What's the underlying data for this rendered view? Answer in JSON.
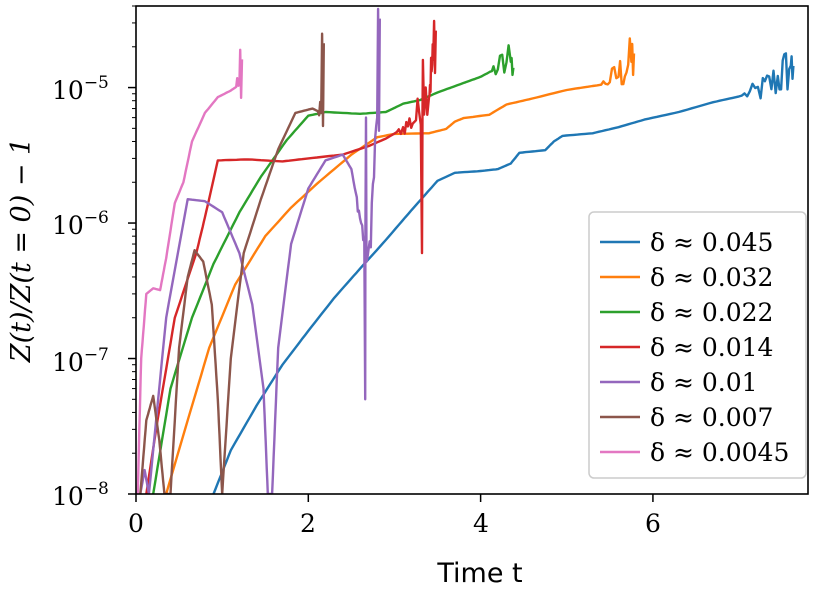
{
  "chart_data": {
    "type": "line",
    "xlabel": "Time t",
    "ylabel": "Z(t)/Z(t = 0) − 1",
    "yscale": "log",
    "xlim": [
      0,
      7.8
    ],
    "ylim": [
      1e-08,
      4e-05
    ],
    "x_ticks": [
      0,
      2,
      4,
      6
    ],
    "x_tick_labels": [
      "0",
      "2",
      "4",
      "6"
    ],
    "y_ticks": [
      1e-08,
      1e-07,
      1e-06,
      1e-05
    ],
    "y_tick_labels": [
      {
        "base": "10",
        "exp": "−8"
      },
      {
        "base": "10",
        "exp": "−7"
      },
      {
        "base": "10",
        "exp": "−6"
      },
      {
        "base": "10",
        "exp": "−5"
      }
    ],
    "legend_position": "lower-right",
    "grid": false,
    "series": [
      {
        "name": "δ ≈ 0.045",
        "color": "#1f77b4",
        "points": [
          [
            0.9,
            1e-08
          ],
          [
            1.1,
            2.1e-08
          ],
          [
            1.4,
            4.5e-08
          ],
          [
            1.7,
            9e-08
          ],
          [
            2.0,
            1.6e-07
          ],
          [
            2.3,
            2.8e-07
          ],
          [
            2.6,
            4.6e-07
          ],
          [
            2.9,
            7.5e-07
          ],
          [
            3.2,
            1.25e-06
          ],
          [
            3.5,
            2.05e-06
          ],
          [
            3.7,
            2.35e-06
          ],
          [
            4.0,
            2.42e-06
          ],
          [
            4.2,
            2.5e-06
          ],
          [
            4.35,
            2.75e-06
          ],
          [
            4.45,
            3.3e-06
          ],
          [
            4.75,
            3.45e-06
          ],
          [
            4.85,
            4e-06
          ],
          [
            4.95,
            4.4e-06
          ],
          [
            5.3,
            4.6e-06
          ],
          [
            5.6,
            5.1e-06
          ],
          [
            5.9,
            5.8e-06
          ],
          [
            6.3,
            6.6e-06
          ],
          [
            6.7,
            7.8e-06
          ],
          [
            7.0,
            8.6e-06
          ],
          [
            7.25,
            9.6e-06
          ],
          [
            7.45,
            1.15e-05
          ],
          [
            7.6,
            1.45e-05
          ]
        ],
        "noise_from": 7.05,
        "end_spike": 1.7e-05
      },
      {
        "name": "δ ≈ 0.032",
        "color": "#ff7f0e",
        "points": [
          [
            0.35,
            1e-08
          ],
          [
            0.6,
            3.5e-08
          ],
          [
            0.85,
            1.2e-07
          ],
          [
            1.15,
            3.5e-07
          ],
          [
            1.5,
            8e-07
          ],
          [
            1.8,
            1.3e-06
          ],
          [
            2.1,
            1.95e-06
          ],
          [
            2.5,
            3.2e-06
          ],
          [
            2.8,
            4.3e-06
          ],
          [
            3.0,
            4.55e-06
          ],
          [
            3.4,
            4.6e-06
          ],
          [
            3.6,
            4.95e-06
          ],
          [
            3.7,
            5.6e-06
          ],
          [
            3.8,
            5.95e-06
          ],
          [
            4.1,
            6.3e-06
          ],
          [
            4.3,
            7.5e-06
          ],
          [
            4.6,
            8.3e-06
          ],
          [
            5.0,
            9.6e-06
          ],
          [
            5.4,
            1.05e-05
          ],
          [
            5.6,
            1.25e-05
          ],
          [
            5.75,
            1.55e-05
          ]
        ],
        "noise_from": 5.42,
        "end_spike": 2.1e-05
      },
      {
        "name": "δ ≈ 0.022",
        "color": "#2ca02c",
        "points": [
          [
            0.2,
            1e-08
          ],
          [
            0.4,
            6e-08
          ],
          [
            0.65,
            2e-07
          ],
          [
            0.9,
            5e-07
          ],
          [
            1.2,
            1.2e-06
          ],
          [
            1.45,
            2.2e-06
          ],
          [
            1.75,
            4.1e-06
          ],
          [
            2.0,
            6.2e-06
          ],
          [
            2.2,
            6.6e-06
          ],
          [
            2.6,
            6.4e-06
          ],
          [
            2.9,
            6.6e-06
          ],
          [
            3.1,
            7.6e-06
          ],
          [
            3.3,
            8.1e-06
          ],
          [
            3.5,
            9.2e-06
          ],
          [
            3.8,
            1.08e-05
          ],
          [
            4.0,
            1.2e-05
          ],
          [
            4.15,
            1.35e-05
          ],
          [
            4.35,
            1.55e-05
          ]
        ],
        "noise_from": 4.12,
        "end_spike": 1.65e-05
      },
      {
        "name": "δ ≈ 0.014",
        "color": "#d62728",
        "points": [
          [
            0.12,
            1e-08
          ],
          [
            0.25,
            3.5e-08
          ],
          [
            0.45,
            2e-07
          ],
          [
            0.7,
            6e-07
          ],
          [
            0.8,
            1.1e-06
          ],
          [
            0.95,
            2.9e-06
          ],
          [
            1.3,
            2.95e-06
          ],
          [
            1.7,
            2.85e-06
          ],
          [
            2.0,
            3e-06
          ],
          [
            2.4,
            3.2e-06
          ],
          [
            2.7,
            3.7e-06
          ],
          [
            2.9,
            4.2e-06
          ],
          [
            3.1,
            5e-06
          ],
          [
            3.25,
            6e-06
          ],
          [
            3.4,
            1e-05
          ],
          [
            3.45,
            1.6e-05
          ]
        ],
        "noise_from": 3.05,
        "end_spike": 3.1e-05,
        "dip_at": 3.32,
        "dip_low": 6e-07
      },
      {
        "name": "δ ≈ 0.01",
        "color": "#9467bd",
        "points": [
          [
            0.05,
            1e-08
          ],
          [
            0.1,
            1.5e-08
          ],
          [
            0.15,
            1e-08
          ],
          [
            0.35,
            2e-07
          ],
          [
            0.6,
            1.5e-06
          ],
          [
            0.8,
            1.45e-06
          ],
          [
            1.0,
            1.2e-06
          ],
          [
            1.2,
            6e-07
          ],
          [
            1.35,
            2.5e-07
          ],
          [
            1.48,
            6e-08
          ],
          [
            1.53,
            1e-08
          ],
          [
            1.58,
            1e-08
          ],
          [
            1.65,
            1.2e-07
          ],
          [
            1.8,
            7e-07
          ],
          [
            2.0,
            1.8e-06
          ],
          [
            2.2,
            2.9e-06
          ],
          [
            2.4,
            3.2e-06
          ],
          [
            2.5,
            2.5e-06
          ],
          [
            2.6,
            1.1e-06
          ],
          [
            2.7,
            5e-07
          ],
          [
            2.8,
            6e-06
          ]
        ],
        "noise_from": 2.55,
        "end_spike": 3.8e-05,
        "dip_at": 2.66,
        "dip_low": 5e-08
      },
      {
        "name": "δ ≈ 0.007",
        "color": "#8c564b",
        "points": [
          [
            0.05,
            1e-08
          ],
          [
            0.12,
            3.5e-08
          ],
          [
            0.2,
            5.3e-08
          ],
          [
            0.27,
            2.5e-08
          ],
          [
            0.33,
            1e-08
          ],
          [
            0.4,
            1e-08
          ],
          [
            0.5,
            1.2e-07
          ],
          [
            0.6,
            4e-07
          ],
          [
            0.68,
            6.3e-07
          ],
          [
            0.78,
            5.2e-07
          ],
          [
            0.88,
            2.5e-07
          ],
          [
            0.95,
            5e-08
          ],
          [
            1.0,
            1e-08
          ],
          [
            1.1,
            1e-07
          ],
          [
            1.25,
            6e-07
          ],
          [
            1.45,
            1.5e-06
          ],
          [
            1.65,
            3.5e-06
          ],
          [
            1.85,
            6.5e-06
          ],
          [
            2.05,
            7e-06
          ],
          [
            2.15,
            6.5e-06
          ]
        ],
        "noise_from": 2.12,
        "end_spike": 2.5e-05
      },
      {
        "name": "δ ≈ 0.0045",
        "color": "#e377c2",
        "points": [
          [
            0.02,
            1e-08
          ],
          [
            0.06,
            1e-07
          ],
          [
            0.12,
            3e-07
          ],
          [
            0.2,
            3.3e-07
          ],
          [
            0.28,
            3.2e-07
          ],
          [
            0.35,
            5.5e-07
          ],
          [
            0.45,
            1.4e-06
          ],
          [
            0.55,
            2e-06
          ],
          [
            0.65,
            4e-06
          ],
          [
            0.8,
            6.5e-06
          ],
          [
            0.95,
            8.5e-06
          ],
          [
            1.1,
            9.5e-06
          ],
          [
            1.2,
            1.05e-05
          ]
        ],
        "noise_from": 1.17,
        "end_spike": 1.9e-05
      }
    ]
  }
}
